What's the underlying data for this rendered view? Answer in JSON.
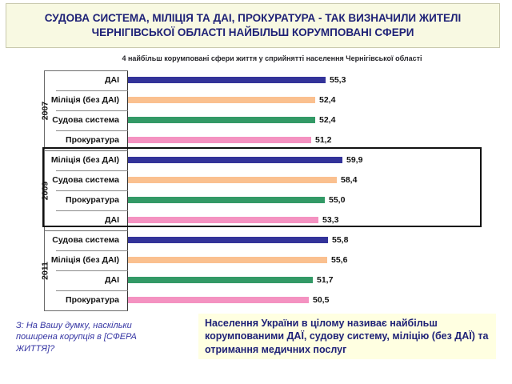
{
  "title": "СУДОВА СИСТЕМА, МІЛІЦІЯ ТА ДАІ, ПРОКУРАТУРА - ТАК ВИЗНАЧИЛИ ЖИТЕЛІ ЧЕРНІГІВСЬКОЇ ОБЛАСТІ НАЙБІЛЬШ КОРУМПОВАНІ СФЕРИ",
  "colors": {
    "title_text": "#1f2277",
    "title_background": "#f8f9e2",
    "callout_background": "#ffffe1",
    "question_text": "#3434a3",
    "bar_navy": "#333399",
    "bar_orange": "#fac08f",
    "bar_green": "#339966",
    "bar_pink": "#f492c1",
    "highlight_border": "#111111"
  },
  "chart_data": {
    "type": "bar",
    "orientation": "horizontal",
    "title": "4 найбільш корумповані сфери життя у сприйнятті населення Чернігівської області",
    "value_axis": {
      "min": 0,
      "implied_max": 60,
      "gridlines": false,
      "unit": "%"
    },
    "bar_colors_cycle": [
      "#333399",
      "#fac08f",
      "#339966",
      "#f492c1"
    ],
    "legend": "none",
    "groups": [
      {
        "year": "2007",
        "highlighted": false,
        "bars": [
          {
            "label": "ДАІ",
            "value": 55.3,
            "value_label": "55,3"
          },
          {
            "label": "Міліція (без ДАІ)",
            "value": 52.4,
            "value_label": "52,4"
          },
          {
            "label": "Судова система",
            "value": 52.4,
            "value_label": "52,4"
          },
          {
            "label": "Прокуратура",
            "value": 51.2,
            "value_label": "51,2"
          }
        ]
      },
      {
        "year": "2009",
        "highlighted": true,
        "bars": [
          {
            "label": "Міліція (без ДАІ)",
            "value": 59.9,
            "value_label": "59,9"
          },
          {
            "label": "Судова система",
            "value": 58.4,
            "value_label": "58,4"
          },
          {
            "label": "Прокуратура",
            "value": 55.0,
            "value_label": "55,0"
          },
          {
            "label": "ДАІ",
            "value": 53.3,
            "value_label": "53,3"
          }
        ]
      },
      {
        "year": "2011",
        "highlighted": false,
        "bars": [
          {
            "label": "Судова система",
            "value": 55.8,
            "value_label": "55,8"
          },
          {
            "label": "Міліція (без ДАІ)",
            "value": 55.6,
            "value_label": "55,6"
          },
          {
            "label": "ДАІ",
            "value": 51.7,
            "value_label": "51,7"
          },
          {
            "label": "Прокуратура",
            "value": 50.5,
            "value_label": "50,5"
          }
        ]
      }
    ]
  },
  "footnote_question": "З: На Вашу думку, наскільки поширена корупція в [СФЕРА ЖИТТЯ]?",
  "callout": "Населення України в цілому називає найбільш корумпованими ДАЇ, судову систему, міліцію (без ДАЇ) та отримання медичних послуг"
}
